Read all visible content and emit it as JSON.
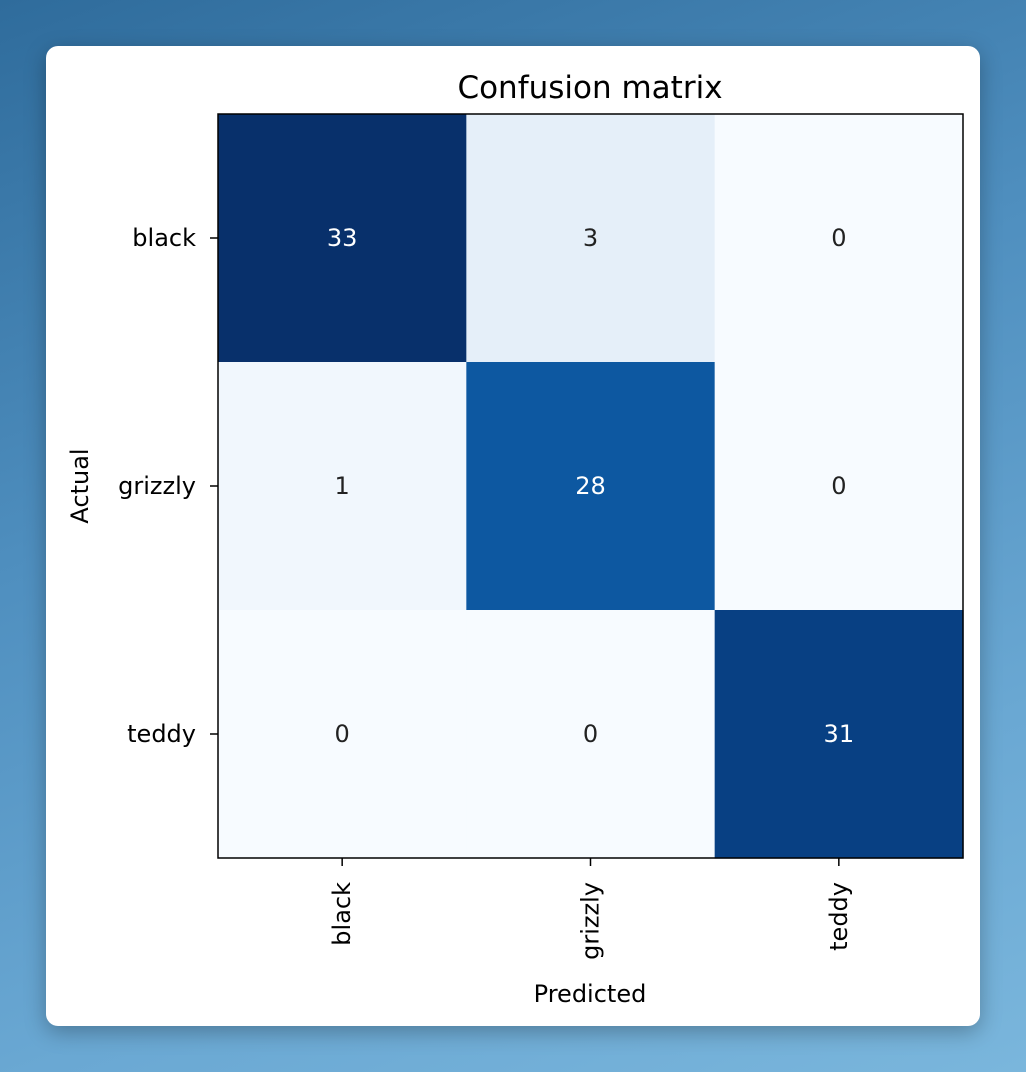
{
  "chart_data": {
    "type": "heatmap",
    "title": "Confusion matrix",
    "xlabel": "Predicted",
    "ylabel": "Actual",
    "x_categories": [
      "black",
      "grizzly",
      "teddy"
    ],
    "y_categories": [
      "black",
      "grizzly",
      "teddy"
    ],
    "values": [
      [
        33,
        3,
        0
      ],
      [
        1,
        28,
        0
      ],
      [
        0,
        0,
        31
      ]
    ],
    "colormap": "Blues",
    "color_low": "#f7fbff",
    "color_high": "#08306b",
    "text_color_dark": "#222222",
    "text_color_light": "#ffffff",
    "grid": false
  }
}
